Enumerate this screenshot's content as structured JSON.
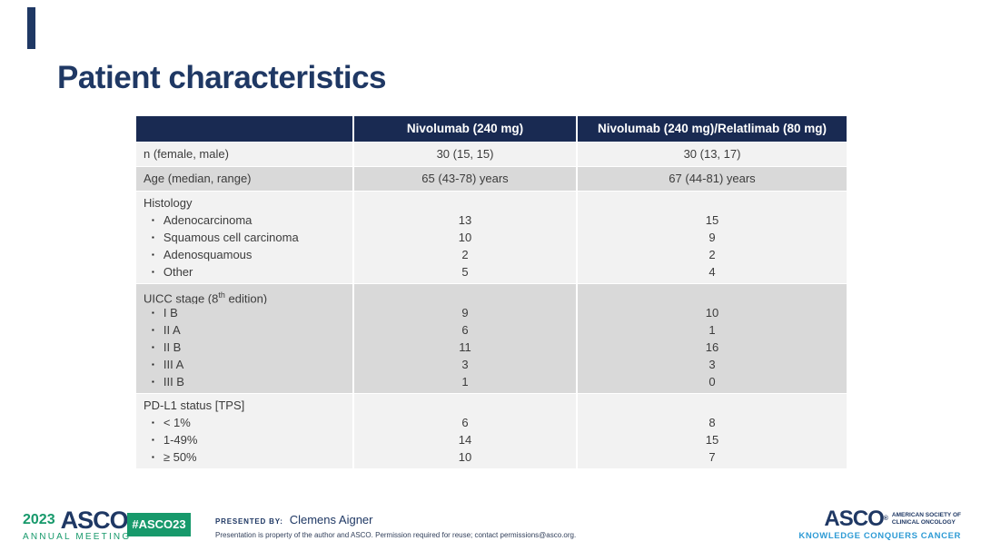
{
  "slide": {
    "title": "Patient characteristics"
  },
  "icons": {
    "bullet": "▪",
    "registered": "®"
  },
  "table": {
    "columns": [
      "",
      "Nivolumab (240 mg)",
      "Nivolumab (240 mg)/Relatlimab (80 mg)"
    ],
    "sections": [
      {
        "rows": [
          {
            "label": "n (female, male)",
            "v1": "30 (15, 15)",
            "v2": "30 (13, 17)"
          }
        ]
      },
      {
        "rows": [
          {
            "label": "Age (median, range)",
            "v1": "65 (43-78) years",
            "v2": "67 (44-81) years"
          }
        ]
      },
      {
        "rows": [
          {
            "label": "Histology",
            "v1": "",
            "v2": ""
          },
          {
            "label": "Adenocarcinoma",
            "v1": "13",
            "v2": "15"
          },
          {
            "label": "Squamous cell carcinoma",
            "v1": "10",
            "v2": "9"
          },
          {
            "label": "Adenosquamous",
            "v1": "2",
            "v2": "2"
          },
          {
            "label": "Other",
            "v1": "5",
            "v2": "4"
          }
        ]
      },
      {
        "rows": [
          {
            "label_pre": "UICC stage (8",
            "label_sup": "th",
            "label_post": " edition)",
            "v1": "",
            "v2": ""
          },
          {
            "label": "I B",
            "v1": "9",
            "v2": "10"
          },
          {
            "label": "II A",
            "v1": "6",
            "v2": "1"
          },
          {
            "label": "II B",
            "v1": "11",
            "v2": "16"
          },
          {
            "label": "III A",
            "v1": "3",
            "v2": "3"
          },
          {
            "label": "III B",
            "v1": "1",
            "v2": "0"
          }
        ]
      },
      {
        "rows": [
          {
            "label": "PD-L1 status [TPS]",
            "v1": "",
            "v2": ""
          },
          {
            "label": "< 1%",
            "v1": "6",
            "v2": "8"
          },
          {
            "label": "1-49%",
            "v1": "14",
            "v2": "15"
          },
          {
            "label": "≥ 50%",
            "v1": "10",
            "v2": "7"
          }
        ]
      }
    ]
  },
  "footer": {
    "meeting_year": "2023",
    "meeting_logo": "ASCO",
    "meeting_sub": "ANNUAL MEETING",
    "hashtag": "#ASCO23",
    "presented_by_label": "PRESENTED BY:",
    "presenter": "Clemens Aigner",
    "disclaimer": "Presentation is property of the author and ASCO. Permission required for reuse; contact permissions@asco.org.",
    "asco_logo": "ASCO",
    "society_line1": "AMERICAN SOCIETY OF",
    "society_line2": "CLINICAL ONCOLOGY",
    "tagline": "KNOWLEDGE CONQUERS CANCER"
  },
  "colors": {
    "navy": "#1F3864",
    "header_navy": "#192A52",
    "row_light": "#F2F2F2",
    "row_dark": "#D9D9D9",
    "green": "#17996B",
    "light_blue": "#2E9BD5"
  }
}
